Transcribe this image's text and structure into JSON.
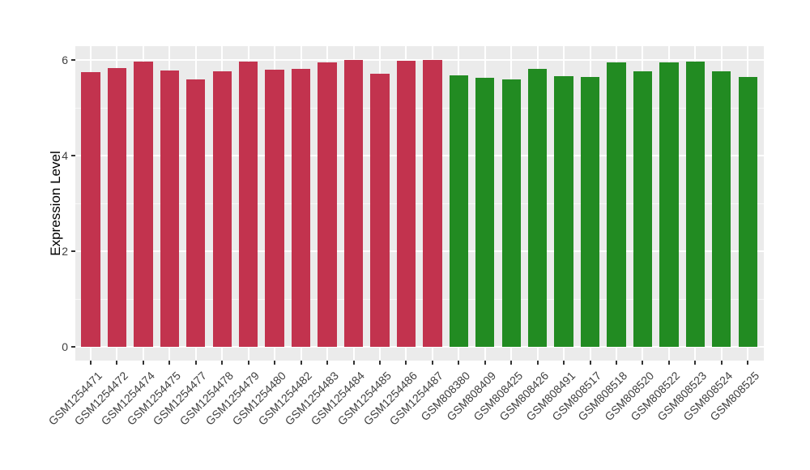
{
  "colors": {
    "page_bg": "#FFFFFF",
    "panel_bg": "#EBEBEB",
    "gridline": "#FFFFFF",
    "axis_text": "#404040",
    "axis_title": "#000000",
    "tick_mark": "#333333"
  },
  "chart_data": {
    "type": "bar",
    "title": "",
    "xlabel": "",
    "ylabel": "Expression Level",
    "ylim": [
      -0.27,
      6.29
    ],
    "yticks": [
      0,
      2,
      4,
      6
    ],
    "yticks_minor": [
      1,
      3,
      5
    ],
    "grid": "white major and minor horizontal lines plus vertical lines at bar centers on grey panel",
    "legend_position": "none",
    "categories": [
      "GSM1254471",
      "GSM1254472",
      "GSM1254474",
      "GSM1254475",
      "GSM1254477",
      "GSM1254478",
      "GSM1254479",
      "GSM1254480",
      "GSM1254482",
      "GSM1254483",
      "GSM1254484",
      "GSM1254485",
      "GSM1254486",
      "GSM1254487",
      "GSM808380",
      "GSM808409",
      "GSM808425",
      "GSM808426",
      "GSM808491",
      "GSM808517",
      "GSM808518",
      "GSM808520",
      "GSM808522",
      "GSM808523",
      "GSM808524",
      "GSM808525"
    ],
    "values": [
      5.75,
      5.83,
      5.97,
      5.78,
      5.6,
      5.77,
      5.97,
      5.8,
      5.81,
      5.95,
      6.0,
      5.72,
      5.98,
      6.0,
      5.67,
      5.63,
      5.6,
      5.82,
      5.66,
      5.64,
      5.95,
      5.76,
      5.95,
      5.97,
      5.76,
      5.64
    ],
    "groups": [
      "red",
      "red",
      "red",
      "red",
      "red",
      "red",
      "red",
      "red",
      "red",
      "red",
      "red",
      "red",
      "red",
      "red",
      "green",
      "green",
      "green",
      "green",
      "green",
      "green",
      "green",
      "green",
      "green",
      "green",
      "green",
      "green"
    ],
    "group_colors": {
      "red": "#C2334E",
      "green": "#228B22"
    }
  }
}
